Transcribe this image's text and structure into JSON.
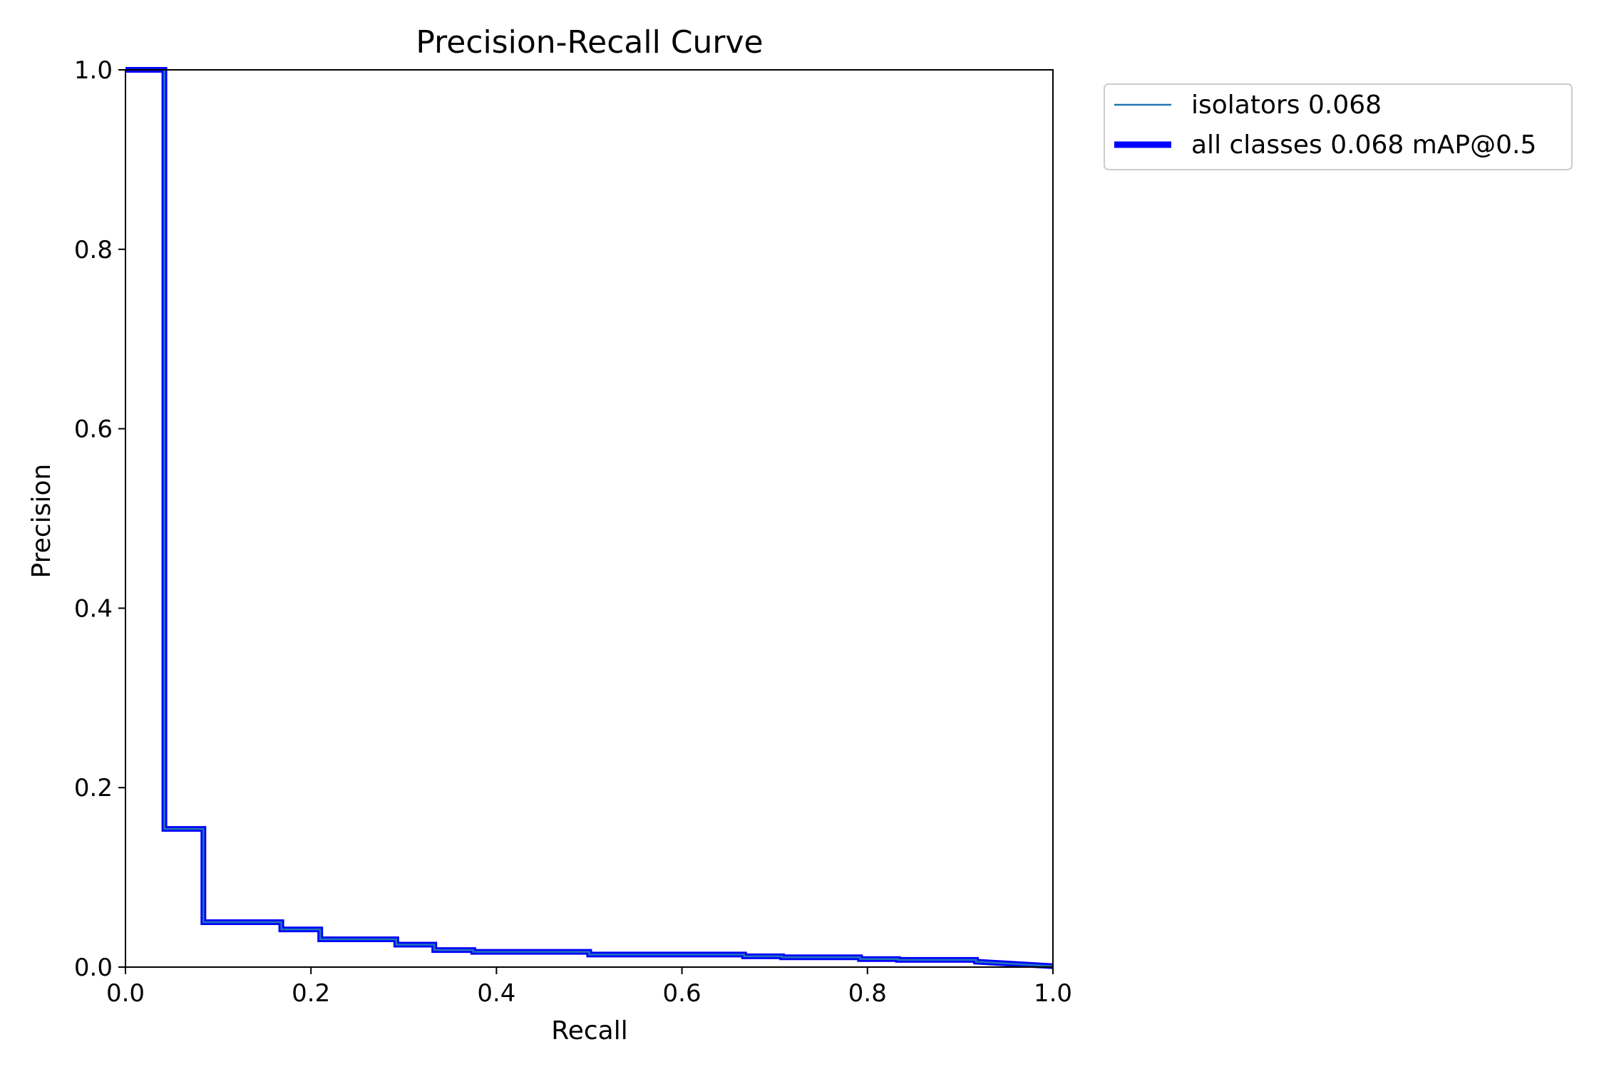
{
  "chart_data": {
    "type": "line",
    "title": "Precision-Recall Curve",
    "xlabel": "Recall",
    "ylabel": "Precision",
    "xlim": [
      0.0,
      1.0
    ],
    "ylim": [
      0.0,
      1.0
    ],
    "xticks": [
      "0.0",
      "0.2",
      "0.4",
      "0.6",
      "0.8",
      "1.0"
    ],
    "yticks": [
      "0.0",
      "0.2",
      "0.4",
      "0.6",
      "0.8",
      "1.0"
    ],
    "grid": false,
    "legend_position": "outside top-right",
    "series": [
      {
        "name": "isolators 0.068",
        "color": "#1f77b4",
        "width": "thin",
        "x": [
          0.0,
          0.042,
          0.042,
          0.084,
          0.084,
          0.168,
          0.168,
          0.21,
          0.21,
          0.292,
          0.292,
          0.333,
          0.333,
          0.375,
          0.375,
          0.5,
          0.5,
          0.667,
          0.667,
          0.708,
          0.708,
          0.792,
          0.792,
          0.833,
          0.833,
          0.917,
          0.917,
          1.0
        ],
        "y": [
          1.0,
          1.0,
          0.154,
          0.154,
          0.05,
          0.05,
          0.042,
          0.042,
          0.031,
          0.031,
          0.025,
          0.025,
          0.019,
          0.019,
          0.017,
          0.017,
          0.014,
          0.014,
          0.012,
          0.012,
          0.011,
          0.011,
          0.009,
          0.009,
          0.008,
          0.008,
          0.006,
          0.001
        ]
      },
      {
        "name": "all classes 0.068 mAP@0.5",
        "color": "#0000ff",
        "width": "thick",
        "x": [
          0.0,
          0.042,
          0.042,
          0.084,
          0.084,
          0.168,
          0.168,
          0.21,
          0.21,
          0.292,
          0.292,
          0.333,
          0.333,
          0.375,
          0.375,
          0.5,
          0.5,
          0.667,
          0.667,
          0.708,
          0.708,
          0.792,
          0.792,
          0.833,
          0.833,
          0.917,
          0.917,
          1.0
        ],
        "y": [
          1.0,
          1.0,
          0.154,
          0.154,
          0.05,
          0.05,
          0.042,
          0.042,
          0.031,
          0.031,
          0.025,
          0.025,
          0.019,
          0.019,
          0.017,
          0.017,
          0.014,
          0.014,
          0.012,
          0.012,
          0.011,
          0.011,
          0.009,
          0.009,
          0.008,
          0.008,
          0.006,
          0.001
        ]
      }
    ]
  }
}
